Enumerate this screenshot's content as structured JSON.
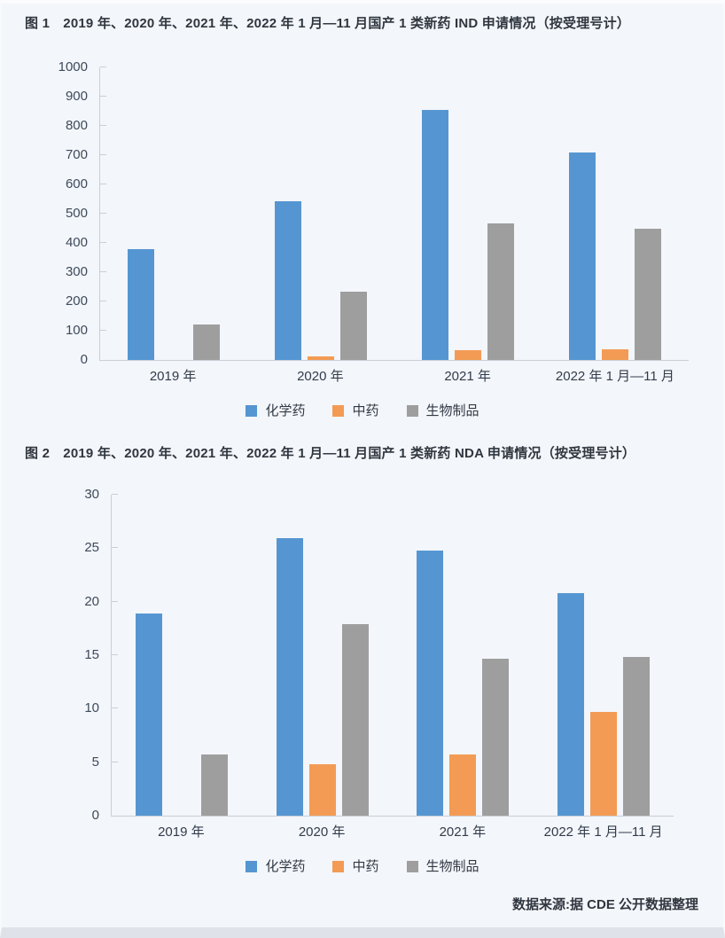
{
  "source_note": "数据来源:据 CDE 公开数据整理",
  "colors": {
    "chemical": "#5596D2",
    "tcm": "#F39B54",
    "biologic": "#9E9E9E",
    "axis": "#C9CFD9",
    "background": "#F3F6FA",
    "title_text": "#30363F",
    "tick_text": "#3E4A5B"
  },
  "chart_data": [
    {
      "type": "bar",
      "title": "图 1　2019 年、2020 年、2021 年、2022 年 1 月—11 月国产 1 类新药 IND 申请情况（按受理号计）",
      "categories": [
        "2019 年",
        "2020 年",
        "2021 年",
        "2022 年 1 月—11 月"
      ],
      "series": [
        {
          "key": "chemical",
          "name": "化学药",
          "color": "#5596D2",
          "values": [
            380,
            541,
            856,
            710
          ]
        },
        {
          "key": "tcm",
          "name": "中药",
          "color": "#F39B54",
          "values": [
            0,
            11,
            34,
            35
          ]
        },
        {
          "key": "biologic",
          "name": "生物制品",
          "color": "#9E9E9E",
          "values": [
            120,
            233,
            466,
            448
          ]
        }
      ],
      "xlabel": "",
      "ylabel": "",
      "ylim": [
        0,
        1000
      ],
      "ytick_step": 100,
      "grid": false,
      "legend_position": "bottom"
    },
    {
      "type": "bar",
      "title": "图 2　2019 年、2020 年、2021 年、2022 年 1 月—11 月国产 1 类新药 NDA 申请情况（按受理号计）",
      "categories": [
        "2019 年",
        "2020 年",
        "2021 年",
        "2022 年 1 月—11 月"
      ],
      "series": [
        {
          "key": "chemical",
          "name": "化学药",
          "color": "#5596D2",
          "values": [
            18.9,
            25.9,
            24.8,
            20.8
          ]
        },
        {
          "key": "tcm",
          "name": "中药",
          "color": "#F39B54",
          "values": [
            0,
            4.8,
            5.7,
            9.7
          ]
        },
        {
          "key": "biologic",
          "name": "生物制品",
          "color": "#9E9E9E",
          "values": [
            5.7,
            17.9,
            14.7,
            14.8
          ]
        }
      ],
      "xlabel": "",
      "ylabel": "",
      "ylim": [
        0,
        30
      ],
      "ytick_step": 5,
      "grid": false,
      "legend_position": "bottom"
    }
  ]
}
